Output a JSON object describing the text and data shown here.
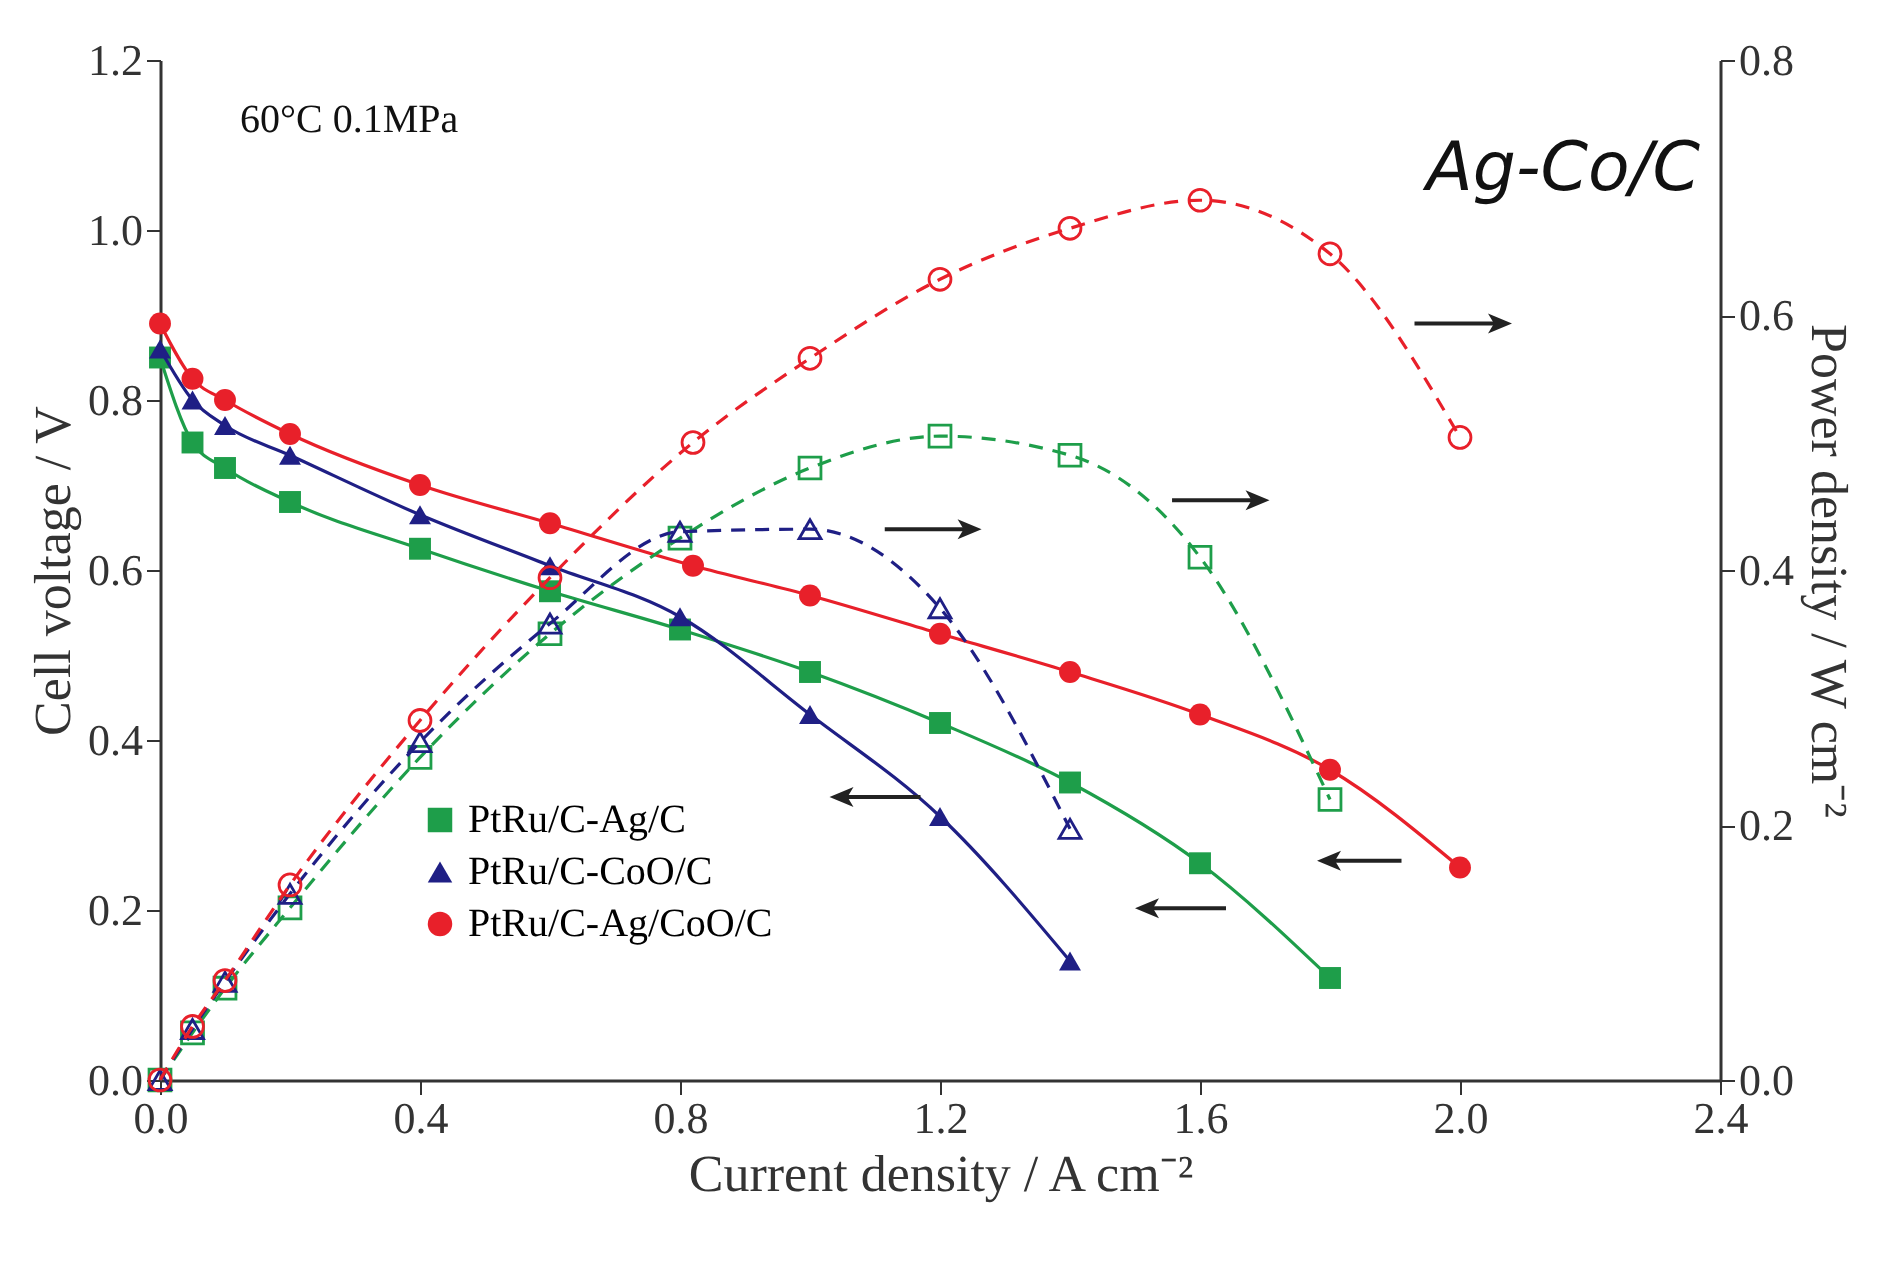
{
  "chart_data": {
    "type": "line",
    "xlabel": "Current density / A cm⁻²",
    "ylabel": "Cell voltage / V",
    "y2label": "Power density / W cm⁻²",
    "annotations": [
      "60°C 0.1MPa",
      "Ag-Co/C"
    ],
    "xlim": [
      0,
      2.4
    ],
    "xticks": [
      {
        "value": 0,
        "label": "0.0"
      },
      0.4,
      0.8,
      1.2,
      1.6,
      {
        "value": 2,
        "label": "2.0"
      },
      {
        "value": 2.4,
        "label": "2.4"
      }
    ],
    "ylim": [
      0,
      1.2
    ],
    "yticks": [
      {
        "value": 0,
        "label": "0.0"
      },
      0.2,
      0.4,
      0.6,
      0.8,
      {
        "value": 1,
        "label": "1.0"
      },
      1.2
    ],
    "y2lim": [
      0,
      0.8
    ],
    "y2ticks": [
      {
        "value": 0,
        "label": "0.0"
      },
      0.2,
      0.4,
      0.6,
      0.8
    ],
    "grid": false,
    "legend": "bottom left",
    "series": [
      {
        "name": "PtRu/C-Ag/C",
        "color": "#1e9e4a",
        "marker": "square",
        "line_style": "solid",
        "x": [
          0,
          0.05,
          0.1,
          0.2,
          0.4,
          0.6,
          0.8,
          1.0,
          1.2,
          1.4,
          1.6,
          1.8
        ],
        "values": [
          0.85,
          0.75,
          0.72,
          0.68,
          0.625,
          0.575,
          0.53,
          0.48,
          0.42,
          0.35,
          0.255,
          0.12
        ]
      },
      {
        "name": "PtRu/C-CoO/C",
        "color": "#1f1f85",
        "marker": "triangle",
        "line_style": "solid",
        "x": [
          0,
          0.05,
          0.1,
          0.2,
          0.4,
          0.6,
          0.8,
          1.0,
          1.2,
          1.4
        ],
        "values": [
          0.86,
          0.8,
          0.77,
          0.735,
          0.665,
          0.605,
          0.545,
          0.43,
          0.31,
          0.14
        ]
      },
      {
        "name": "PtRu/C-Ag/CoO/C",
        "color": "#e8202a",
        "marker": "circle",
        "line_style": "solid",
        "x": [
          0,
          0.05,
          0.1,
          0.2,
          0.4,
          0.6,
          0.82,
          1.0,
          1.2,
          1.4,
          1.6,
          1.8,
          2.0
        ],
        "values": [
          0.89,
          0.825,
          0.8,
          0.76,
          0.7,
          0.655,
          0.605,
          0.57,
          0.525,
          0.48,
          0.43,
          0.365,
          0.25
        ]
      },
      {
        "color": "#1e9e4a",
        "marker": "square",
        "line_style": "dashed",
        "axis": "y2",
        "x": [
          0,
          0.05,
          0.1,
          0.2,
          0.4,
          0.6,
          0.8,
          1.0,
          1.2,
          1.4,
          1.6,
          1.8
        ],
        "values": [
          0,
          0.037,
          0.072,
          0.135,
          0.253,
          0.35,
          0.425,
          0.48,
          0.505,
          0.49,
          0.41,
          0.22
        ]
      },
      {
        "color": "#1f1f85",
        "marker": "triangle",
        "line_style": "dashed",
        "axis": "y2",
        "x": [
          0,
          0.05,
          0.1,
          0.2,
          0.4,
          0.6,
          0.8,
          1.0,
          1.2,
          1.4
        ],
        "values": [
          0,
          0.04,
          0.077,
          0.146,
          0.265,
          0.358,
          0.43,
          0.432,
          0.37,
          0.197
        ]
      },
      {
        "color": "#e8202a",
        "marker": "circle",
        "line_style": "dashed",
        "axis": "y2",
        "x": [
          0,
          0.05,
          0.1,
          0.2,
          0.4,
          0.6,
          0.82,
          1.0,
          1.2,
          1.4,
          1.6,
          1.8,
          2.0
        ],
        "values": [
          0,
          0.042,
          0.078,
          0.153,
          0.282,
          0.394,
          0.5,
          0.566,
          0.628,
          0.668,
          0.69,
          0.648,
          0.504
        ]
      }
    ]
  }
}
